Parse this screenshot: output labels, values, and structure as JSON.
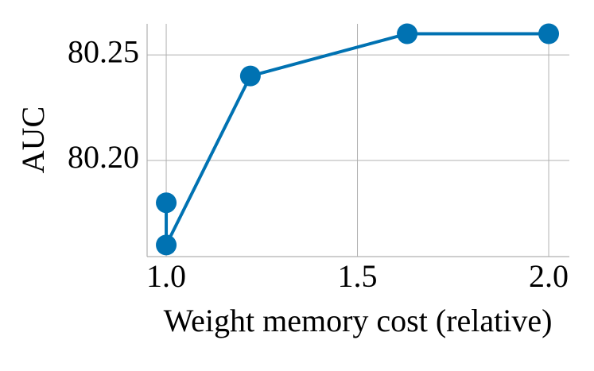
{
  "chart_data": {
    "type": "line",
    "x_label": "Weight memory cost (relative)",
    "y_label": "AUC",
    "series": [
      {
        "name": "AUC",
        "color": "#0072b2",
        "x": [
          1.0,
          1.0,
          1.22,
          1.63,
          2.0
        ],
        "values": [
          80.18,
          80.16,
          80.24,
          80.26,
          80.26
        ]
      }
    ],
    "xlim": [
      0.95,
      2.054
    ],
    "ylim": [
      80.1545,
      80.2647
    ],
    "xticks": [
      {
        "value": 1.0,
        "label": "1.0"
      },
      {
        "value": 1.5,
        "label": "1.5"
      },
      {
        "value": 2.0,
        "label": "2.0"
      }
    ],
    "yticks": [
      {
        "value": 80.2,
        "label": "80.20"
      },
      80.25
    ],
    "grid": true
  }
}
